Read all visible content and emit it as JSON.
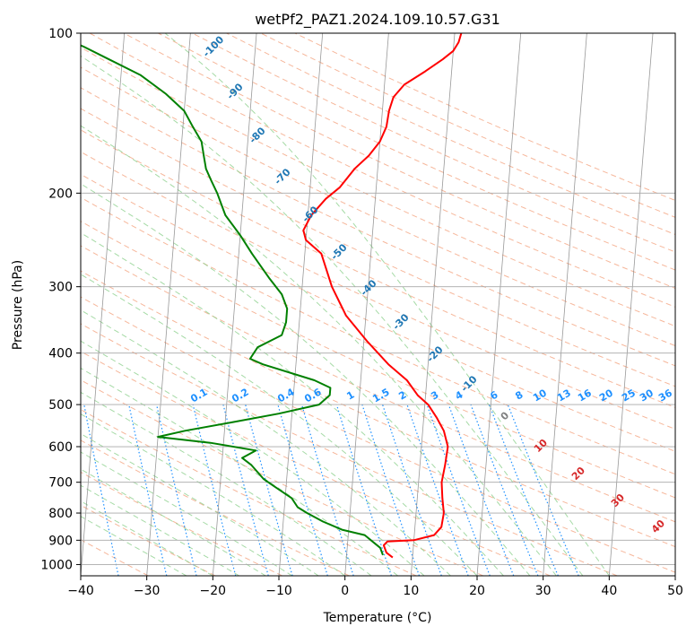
{
  "chart_data": {
    "type": "line",
    "title": "wetPf2_PAZ1.2024.109.10.57.G31",
    "xlabel": "Temperature (°C)",
    "ylabel": "Pressure (hPa)",
    "xlim": [
      -40,
      50
    ],
    "ylim": [
      1050,
      100
    ],
    "y_scale": "log",
    "x_ticks": [
      -40,
      -30,
      -20,
      -10,
      0,
      10,
      20,
      30,
      40,
      50
    ],
    "y_ticks": [
      100,
      200,
      300,
      400,
      500,
      600,
      700,
      800,
      900,
      1000
    ],
    "x_tick_labels": [
      "−40",
      "−30",
      "−20",
      "−10",
      "0",
      "10",
      "20",
      "30",
      "40",
      "50"
    ],
    "y_tick_labels": [
      "100",
      "200",
      "300",
      "400",
      "500",
      "600",
      "700",
      "800",
      "900",
      "1000"
    ],
    "grid": true,
    "skew": true,
    "series": [
      {
        "color": "#ff0000",
        "points": [
          [
            7,
            970
          ],
          [
            6,
            950
          ],
          [
            5.5,
            920
          ],
          [
            6,
            905
          ],
          [
            10,
            900
          ],
          [
            13,
            880
          ],
          [
            14,
            850
          ],
          [
            14.2,
            800
          ],
          [
            13.8,
            750
          ],
          [
            13.5,
            700
          ],
          [
            13.8,
            650
          ],
          [
            14,
            600
          ],
          [
            13.2,
            560
          ],
          [
            12,
            530
          ],
          [
            10.5,
            500
          ],
          [
            8.8,
            480
          ],
          [
            7,
            450
          ],
          [
            4,
            420
          ],
          [
            0.5,
            380
          ],
          [
            -3,
            340
          ],
          [
            -5.5,
            300
          ],
          [
            -7.5,
            260
          ],
          [
            -10,
            245
          ],
          [
            -10.5,
            235
          ],
          [
            -9.5,
            220
          ],
          [
            -7.5,
            205
          ],
          [
            -5.5,
            195
          ],
          [
            -3.5,
            180
          ],
          [
            -1.5,
            170
          ],
          [
            0,
            160
          ],
          [
            0.8,
            150
          ],
          [
            1,
            140
          ],
          [
            1.5,
            132
          ],
          [
            3,
            125
          ],
          [
            6,
            118
          ],
          [
            8.5,
            112
          ],
          [
            10,
            108
          ],
          [
            10.7,
            104
          ],
          [
            11,
            100
          ]
        ]
      },
      {
        "color": "#008000",
        "points": [
          [
            5.5,
            960
          ],
          [
            5,
            930
          ],
          [
            4,
            910
          ],
          [
            2.5,
            880
          ],
          [
            -1,
            860
          ],
          [
            -4,
            830
          ],
          [
            -6.5,
            800
          ],
          [
            -8,
            780
          ],
          [
            -9,
            750
          ],
          [
            -12,
            710
          ],
          [
            -13.5,
            690
          ],
          [
            -15.5,
            650
          ],
          [
            -17,
            630
          ],
          [
            -15,
            610
          ],
          [
            -22,
            590
          ],
          [
            -30,
            575
          ],
          [
            -26,
            560
          ],
          [
            -19,
            540
          ],
          [
            -12,
            520
          ],
          [
            -6,
            500
          ],
          [
            -4.5,
            480
          ],
          [
            -4.5,
            465
          ],
          [
            -7,
            450
          ],
          [
            -15,
            420
          ],
          [
            -17,
            410
          ],
          [
            -16,
            390
          ],
          [
            -12.5,
            370
          ],
          [
            -12,
            350
          ],
          [
            -12,
            330
          ],
          [
            -13,
            310
          ],
          [
            -15,
            290
          ],
          [
            -18,
            260
          ],
          [
            -20,
            240
          ],
          [
            -22.5,
            220
          ],
          [
            -24,
            200
          ],
          [
            -25,
            190
          ],
          [
            -26,
            180
          ],
          [
            -26.5,
            170
          ],
          [
            -27,
            160
          ],
          [
            -28.5,
            150
          ],
          [
            -30,
            140
          ],
          [
            -33,
            130
          ],
          [
            -37,
            120
          ],
          [
            -42,
            112
          ],
          [
            -46,
            106
          ],
          [
            -51,
            100
          ]
        ]
      }
    ],
    "dry_adiabat_labels": [
      "-100",
      "-90",
      "-80",
      "-70",
      "-60",
      "-50",
      "-40",
      "-30",
      "-20",
      "-10",
      "0",
      "10",
      "20",
      "30",
      "40"
    ],
    "mixing_ratio_labels": [
      "0.1",
      "0.2",
      "0.4",
      "0.6",
      "1",
      "1.5",
      "2",
      "3",
      "4",
      "6",
      "8",
      "10",
      "13",
      "16",
      "20",
      "25",
      "30",
      "36"
    ],
    "colors": {
      "isotherm": "#808080",
      "dry_adiabat": "#f4a582",
      "moist_adiabat": "#8fd18f",
      "mixing_ratio": "#1e90ff",
      "isobar": "#a9a9a9",
      "label_blue": "#1f77b4",
      "label_gray": "#808080",
      "label_red": "#d62728"
    }
  }
}
